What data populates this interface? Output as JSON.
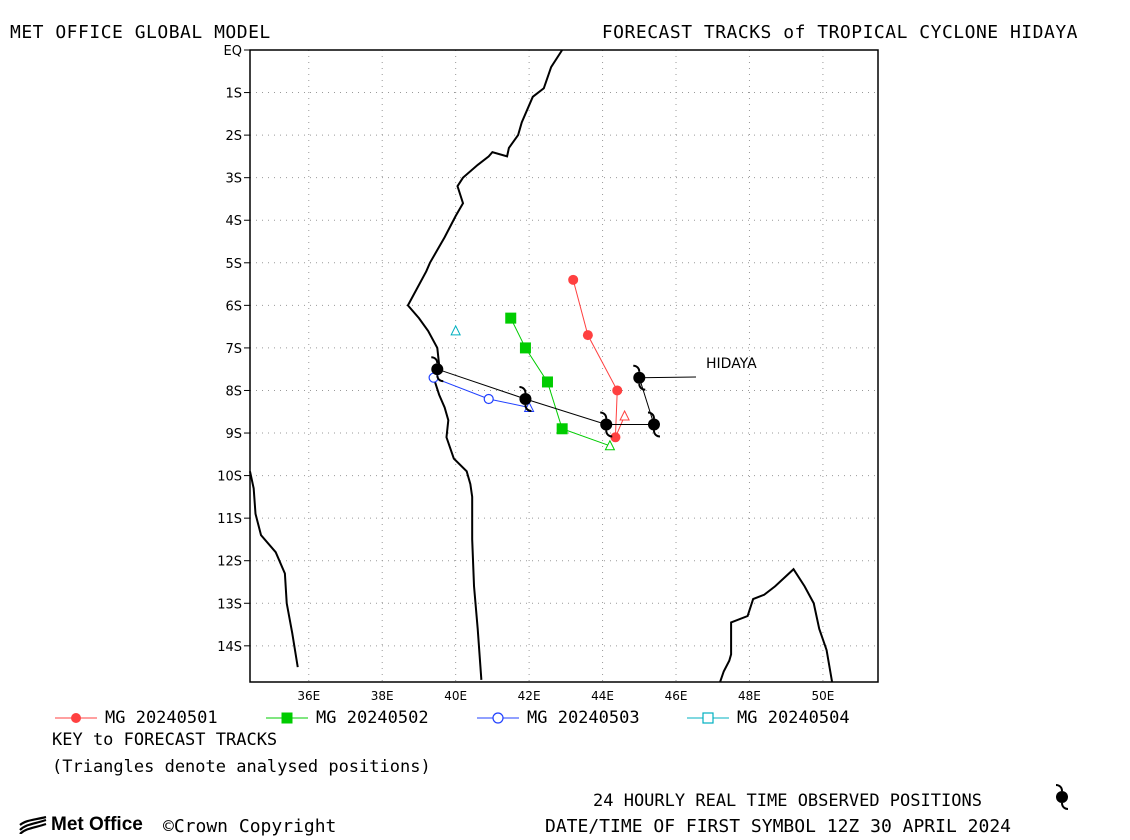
{
  "header": {
    "left_title": "MET OFFICE GLOBAL MODEL",
    "right_title": "FORECAST TRACKS of TROPICAL CYCLONE HIDAYA"
  },
  "chart_data": {
    "type": "scatter",
    "title": "FORECAST TRACKS of TROPICAL CYCLONE HIDAYA",
    "xlabel": "",
    "ylabel": "",
    "xlim": [
      34.4,
      51.5
    ],
    "ylim": [
      -14.85,
      0
    ],
    "grid": true,
    "x_ticks": [
      36,
      38,
      40,
      42,
      44,
      46,
      48,
      50
    ],
    "x_tick_labels": [
      "36E",
      "38E",
      "40E",
      "42E",
      "44E",
      "46E",
      "48E",
      "50E"
    ],
    "y_ticks": [
      0,
      -1,
      -2,
      -3,
      -4,
      -5,
      -6,
      -7,
      -8,
      -9,
      -10,
      -11,
      -12,
      -13,
      -14
    ],
    "y_tick_labels": [
      "EQ",
      "1S",
      "2S",
      "3S",
      "4S",
      "5S",
      "6S",
      "7S",
      "8S",
      "9S",
      "10S",
      "11S",
      "12S",
      "13S",
      "14S"
    ],
    "storm_label": "HIDAYA",
    "observed_track": {
      "lon": [
        45.0,
        45.4,
        44.1,
        41.9,
        39.5
      ],
      "lat": [
        -7.7,
        -8.8,
        -8.8,
        -8.2,
        -7.5
      ]
    },
    "series": [
      {
        "name": "MG 20240501",
        "color": "#ff4040",
        "symbol": "circle-filled",
        "analysed": {
          "lon": 44.6,
          "lat": -8.6
        },
        "lon": [
          44.6,
          44.35,
          44.4,
          43.6,
          43.2
        ],
        "lat": [
          -8.6,
          -9.1,
          -8.0,
          -6.7,
          -5.4
        ]
      },
      {
        "name": "MG 20240502",
        "color": "#00cc00",
        "symbol": "square-filled",
        "analysed": {
          "lon": 44.2,
          "lat": -9.3
        },
        "lon": [
          44.2,
          42.9,
          42.5,
          41.9,
          41.5
        ],
        "lat": [
          -9.3,
          -8.9,
          -7.8,
          -7.0,
          -6.3
        ]
      },
      {
        "name": "MG 20240503",
        "color": "#2040ff",
        "symbol": "circle-open",
        "analysed": {
          "lon": 42.0,
          "lat": -8.4
        },
        "lon": [
          42.0,
          40.9,
          39.4
        ],
        "lat": [
          -8.4,
          -8.2,
          -7.7
        ]
      },
      {
        "name": "MG 20240504",
        "color": "#00b0c0",
        "symbol": "square-open",
        "analysed": {
          "lon": 40.0,
          "lat": -6.6
        },
        "lon": [
          40.0
        ],
        "lat": [
          -6.6
        ]
      }
    ],
    "coastline_africa": {
      "lon": [
        42.9,
        42.6,
        42.4,
        42.1,
        41.8,
        41.7,
        41.45,
        41.4,
        41.0,
        40.9,
        40.6,
        40.2,
        40.05,
        40.2,
        40.0,
        39.7,
        39.5,
        39.3,
        39.2,
        38.7,
        39.0,
        39.25,
        39.5,
        39.55,
        39.4,
        39.55,
        39.7,
        39.8,
        39.75,
        39.95,
        40.3,
        40.4,
        40.45,
        40.45,
        40.5,
        40.6,
        40.7
      ],
      "lat": [
        0.0,
        -0.4,
        -0.9,
        -1.1,
        -1.7,
        -2.0,
        -2.3,
        -2.5,
        -2.4,
        -2.5,
        -2.7,
        -3.0,
        -3.2,
        -3.6,
        -3.9,
        -4.4,
        -4.7,
        -5.0,
        -5.2,
        -6.0,
        -6.3,
        -6.6,
        -7.0,
        -7.4,
        -7.7,
        -8.1,
        -8.4,
        -8.7,
        -9.1,
        -9.6,
        -9.9,
        -10.2,
        -10.5,
        -11.5,
        -12.6,
        -13.6,
        -14.8
      ]
    },
    "coastline_west": {
      "lon": [
        34.4,
        34.5,
        34.55,
        34.7,
        35.1,
        35.35,
        35.4,
        35.55,
        35.7
      ],
      "lat": [
        -9.9,
        -10.3,
        -10.9,
        -11.4,
        -11.8,
        -12.3,
        -13.0,
        -13.7,
        -14.5
      ]
    },
    "coastline_madagascar": {
      "lon": [
        47.2,
        47.3,
        47.45,
        47.5,
        47.5,
        47.95,
        48.1,
        48.4,
        48.7,
        49.2,
        49.5,
        49.75,
        49.9,
        50.1,
        50.25
      ],
      "lat": [
        -14.85,
        -14.6,
        -14.35,
        -14.2,
        -13.45,
        -13.3,
        -12.9,
        -12.8,
        -12.6,
        -12.2,
        -12.6,
        -13.0,
        -13.6,
        -14.1,
        -14.85
      ]
    }
  },
  "legend": [
    {
      "label": "MG 20240501"
    },
    {
      "label": "MG 20240502"
    },
    {
      "label": "MG 20240503"
    },
    {
      "label": "MG 20240504"
    }
  ],
  "key": {
    "title": "KEY to FORECAST TRACKS",
    "note": "(Triangles denote analysed positions)"
  },
  "footer": {
    "brand": "Met Office",
    "copyright": "©Crown Copyright",
    "observed": "24 HOURLY REAL TIME OBSERVED POSITIONS",
    "datetime": "DATE/TIME OF FIRST SYMBOL 12Z 30 APRIL 2024"
  }
}
